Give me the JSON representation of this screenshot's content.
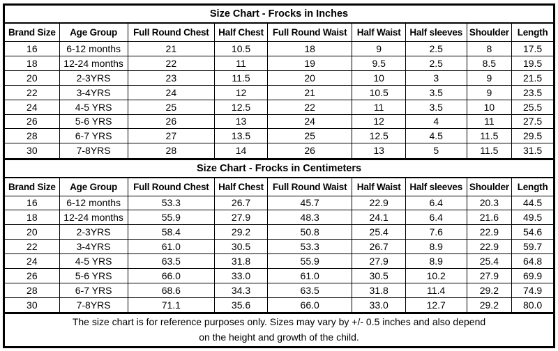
{
  "colors": {
    "border": "#000000",
    "background": "#ffffff",
    "text": "#000000"
  },
  "columns": [
    "Brand Size",
    "Age Group",
    "Full Round Chest",
    "Half Chest",
    "Full Round Waist",
    "Half Waist",
    "Half sleeves",
    "Shoulder",
    "Length"
  ],
  "tables": [
    {
      "title": "Size Chart - Frocks in Inches",
      "rows": [
        [
          "16",
          "6-12 months",
          "21",
          "10.5",
          "18",
          "9",
          "2.5",
          "8",
          "17.5"
        ],
        [
          "18",
          "12-24 months",
          "22",
          "11",
          "19",
          "9.5",
          "2.5",
          "8.5",
          "19.5"
        ],
        [
          "20",
          "2-3YRS",
          "23",
          "11.5",
          "20",
          "10",
          "3",
          "9",
          "21.5"
        ],
        [
          "22",
          "3-4YRS",
          "24",
          "12",
          "21",
          "10.5",
          "3.5",
          "9",
          "23.5"
        ],
        [
          "24",
          "4-5 YRS",
          "25",
          "12.5",
          "22",
          "11",
          "3.5",
          "10",
          "25.5"
        ],
        [
          "26",
          "5-6 YRS",
          "26",
          "13",
          "24",
          "12",
          "4",
          "11",
          "27.5"
        ],
        [
          "28",
          "6-7 YRS",
          "27",
          "13.5",
          "25",
          "12.5",
          "4.5",
          "11.5",
          "29.5"
        ],
        [
          "30",
          "7-8YRS",
          "28",
          "14",
          "26",
          "13",
          "5",
          "11.5",
          "31.5"
        ]
      ]
    },
    {
      "title": "Size Chart - Frocks in Centimeters",
      "rows": [
        [
          "16",
          "6-12 months",
          "53.3",
          "26.7",
          "45.7",
          "22.9",
          "6.4",
          "20.3",
          "44.5"
        ],
        [
          "18",
          "12-24 months",
          "55.9",
          "27.9",
          "48.3",
          "24.1",
          "6.4",
          "21.6",
          "49.5"
        ],
        [
          "20",
          "2-3YRS",
          "58.4",
          "29.2",
          "50.8",
          "25.4",
          "7.6",
          "22.9",
          "54.6"
        ],
        [
          "22",
          "3-4YRS",
          "61.0",
          "30.5",
          "53.3",
          "26.7",
          "8.9",
          "22.9",
          "59.7"
        ],
        [
          "24",
          "4-5 YRS",
          "63.5",
          "31.8",
          "55.9",
          "27.9",
          "8.9",
          "25.4",
          "64.8"
        ],
        [
          "26",
          "5-6 YRS",
          "66.0",
          "33.0",
          "61.0",
          "30.5",
          "10.2",
          "27.9",
          "69.9"
        ],
        [
          "28",
          "6-7 YRS",
          "68.6",
          "34.3",
          "63.5",
          "31.8",
          "11.4",
          "29.2",
          "74.9"
        ],
        [
          "30",
          "7-8YRS",
          "71.1",
          "35.6",
          "66.0",
          "33.0",
          "12.7",
          "29.2",
          "80.0"
        ]
      ]
    }
  ],
  "footer": {
    "line1": "The size chart is for reference purposes only. Sizes may vary by +/- 0.5 inches and also depend",
    "line2": "on the height and growth of the child."
  }
}
